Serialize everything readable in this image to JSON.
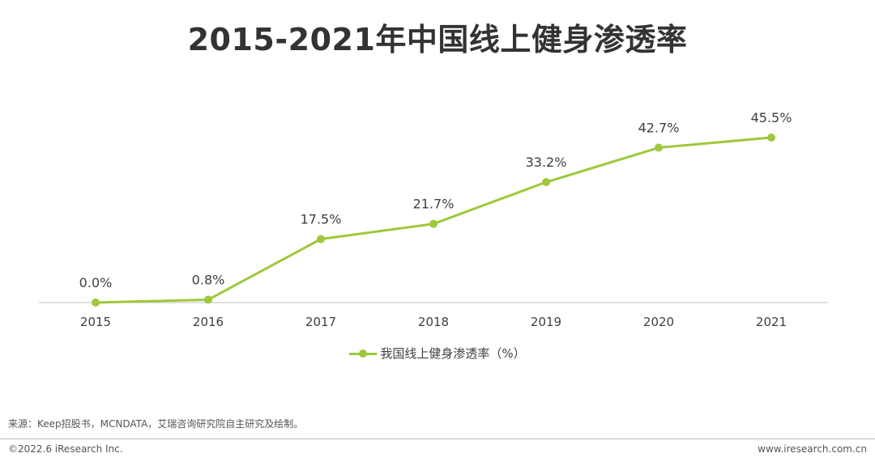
{
  "chart_data": {
    "type": "line",
    "title": "2015-2021年中国线上健身渗透率",
    "categories": [
      "2015",
      "2016",
      "2017",
      "2018",
      "2019",
      "2020",
      "2021"
    ],
    "series": [
      {
        "name": "我国线上健身渗透率（%）",
        "values": [
          0.0,
          0.8,
          17.5,
          21.7,
          33.2,
          42.7,
          45.5
        ],
        "labels": [
          "0.0%",
          "0.8%",
          "17.5%",
          "21.7%",
          "33.2%",
          "42.7%",
          "45.5%"
        ]
      }
    ],
    "ylim": [
      0,
      50
    ],
    "grid": false,
    "legend_position": "bottom",
    "line_color": "#9dc93a",
    "xlabel": "",
    "ylabel": ""
  },
  "footer": {
    "source": "来源：Keep招股书，MCNDATA，艾瑞咨询研究院自主研究及绘制。",
    "copyright": "©2022.6 iResearch Inc.",
    "website": "www.iresearch.com.cn"
  }
}
